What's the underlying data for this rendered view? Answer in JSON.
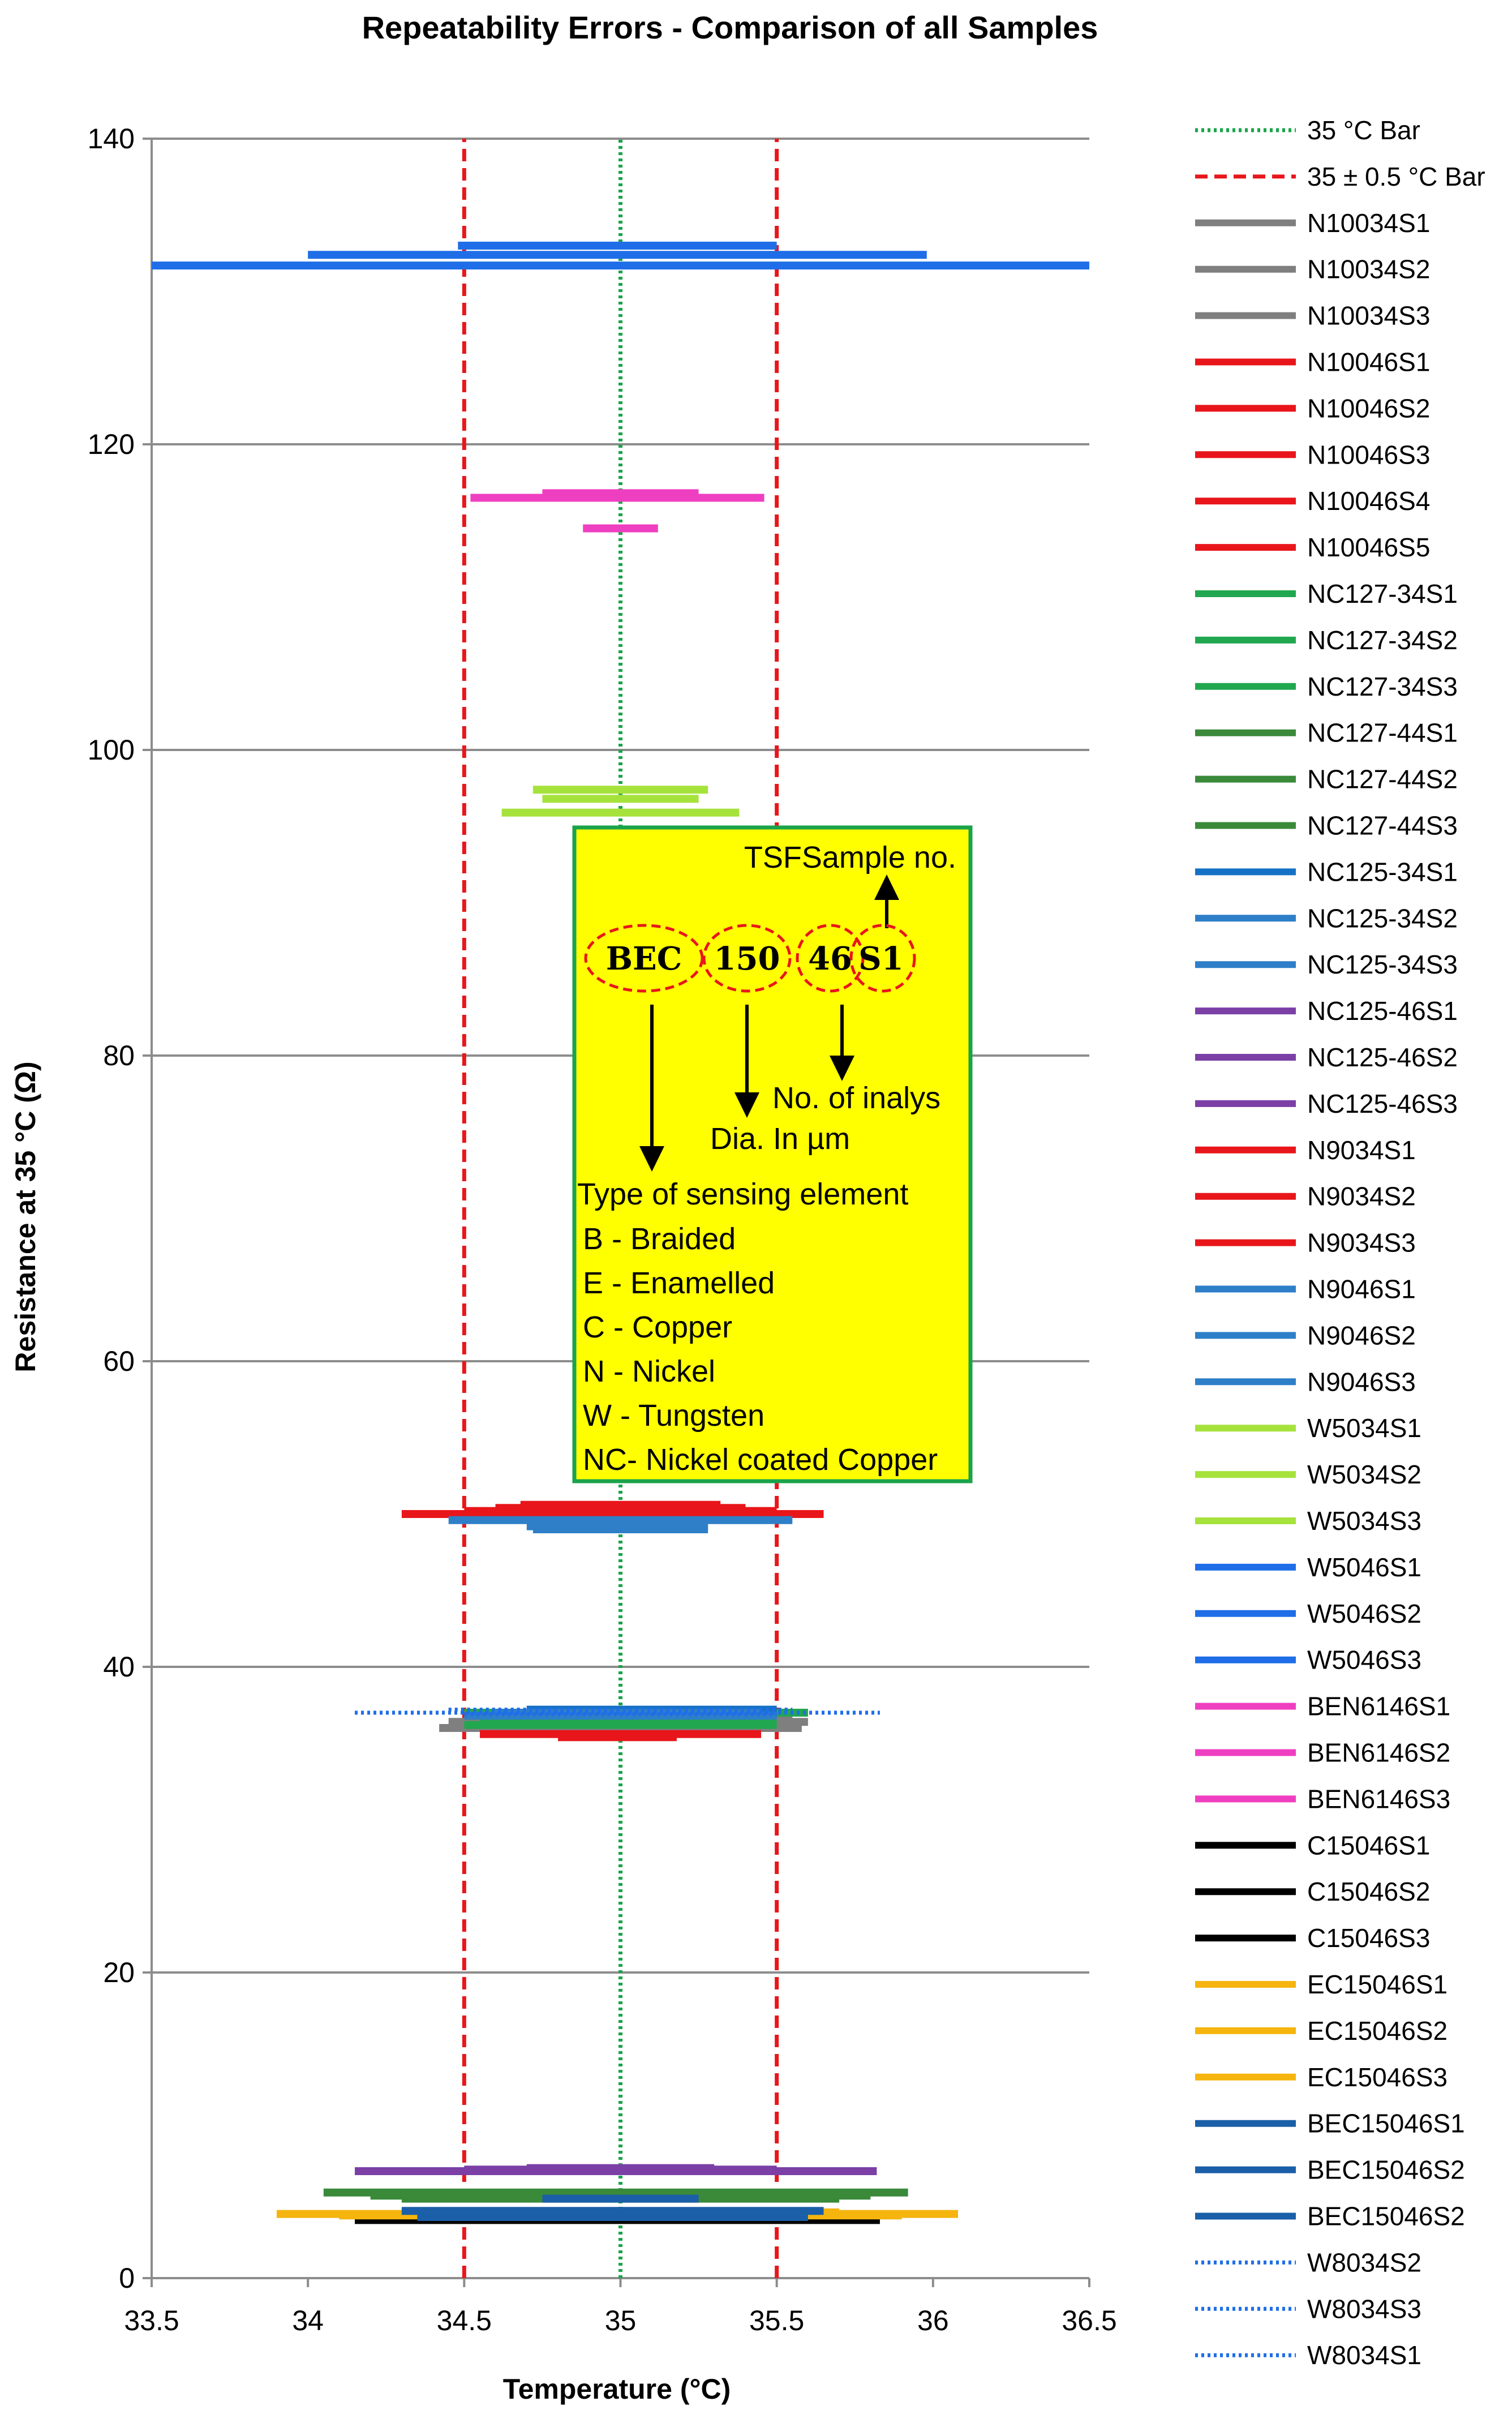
{
  "chart_data": {
    "type": "scatter",
    "title": "Repeatability Errors - Comparison of all Samples",
    "xlabel": "Temperature (°C)",
    "ylabel": "Resistance at 35 °C (Ω)",
    "xlim": [
      33.5,
      36.5
    ],
    "ylim": [
      0,
      140
    ],
    "x_ticks": [
      "33.5",
      "34",
      "34.5",
      "35",
      "35.5",
      "36",
      "36.5"
    ],
    "y_ticks": [
      "0",
      "20",
      "40",
      "60",
      "80",
      "100",
      "120",
      "140"
    ],
    "grid": "horizontal",
    "legend_position": "right",
    "series": [
      {
        "name": "35 °C  Bar",
        "style": "dotted",
        "color": "#1aa34a",
        "x": [
          35,
          35
        ],
        "y": [
          0,
          140
        ]
      },
      {
        "name": "35 ± 0.5 °C Bar",
        "style": "dashed",
        "color": "#e8161b",
        "x": [
          34.5,
          34.5
        ],
        "y": [
          0,
          140
        ]
      },
      {
        "name": "",
        "style": "dashed",
        "color": "#e8161b",
        "x": [
          35.5,
          35.5
        ],
        "y": [
          0,
          140
        ]
      },
      {
        "name": "N10034S1",
        "color": "#7f7f7f",
        "x": [
          34.5,
          35.55
        ],
        "y": [
          36.8,
          36.8
        ]
      },
      {
        "name": "N10034S2",
        "color": "#7f7f7f",
        "x": [
          34.45,
          35.6
        ],
        "y": [
          36.4,
          36.4
        ]
      },
      {
        "name": "N10034S3",
        "color": "#7f7f7f",
        "x": [
          34.42,
          35.58
        ],
        "y": [
          36.0,
          36.0
        ]
      },
      {
        "name": "N10046S1",
        "color": "#e8161b",
        "x": [
          34.68,
          35.32
        ],
        "y": [
          50.6,
          50.6
        ]
      },
      {
        "name": "N10046S2",
        "color": "#e8161b",
        "x": [
          34.35,
          35.65
        ],
        "y": [
          50.0,
          50.0
        ]
      },
      {
        "name": "N10046S3",
        "color": "#e8161b",
        "x": [
          34.6,
          35.4
        ],
        "y": [
          50.3,
          50.3
        ]
      },
      {
        "name": "N10046S4",
        "color": "#e8161b",
        "x": [
          34.55,
          35.45
        ],
        "y": [
          35.6,
          35.6
        ]
      },
      {
        "name": "N10046S5",
        "color": "#e8161b",
        "x": [
          34.8,
          35.18
        ],
        "y": [
          35.4,
          35.4
        ]
      },
      {
        "name": "NC127-34S1",
        "color": "#21a74f",
        "x": [
          34.5,
          35.6
        ],
        "y": [
          37.0,
          37.0
        ]
      },
      {
        "name": "NC127-34S2",
        "color": "#21a74f",
        "x": [
          34.55,
          35.5
        ],
        "y": [
          36.6,
          36.6
        ]
      },
      {
        "name": "NC127-34S3",
        "color": "#21a74f",
        "x": [
          34.5,
          35.5
        ],
        "y": [
          36.2,
          36.2
        ]
      },
      {
        "name": "NC127-44S1",
        "color": "#3a8a3a",
        "x": [
          34.05,
          35.92
        ],
        "y": [
          5.6,
          5.6
        ]
      },
      {
        "name": "NC127-44S2",
        "color": "#3a8a3a",
        "x": [
          34.2,
          35.8
        ],
        "y": [
          5.4,
          5.4
        ]
      },
      {
        "name": "NC127-44S3",
        "color": "#3a8a3a",
        "x": [
          34.3,
          35.7
        ],
        "y": [
          5.2,
          5.2
        ]
      },
      {
        "name": "NC125-34S1",
        "color": "#1472c4",
        "x": [
          34.7,
          35.5
        ],
        "y": [
          37.2,
          37.2
        ]
      },
      {
        "name": "NC125-34S2",
        "color": "#2e7fc8",
        "x": [
          34.6,
          35.45
        ],
        "y": [
          37.0,
          37.0
        ]
      },
      {
        "name": "NC125-34S3",
        "color": "#2e7fc8",
        "x": [
          34.5,
          35.5
        ],
        "y": [
          36.8,
          36.8
        ]
      },
      {
        "name": "NC125-46S1",
        "color": "#7b3fa6",
        "x": [
          34.15,
          35.82
        ],
        "y": [
          7.0,
          7.0
        ]
      },
      {
        "name": "NC125-46S2",
        "color": "#7b3fa6",
        "x": [
          34.7,
          35.3
        ],
        "y": [
          7.2,
          7.2
        ]
      },
      {
        "name": "NC125-46S3",
        "color": "#7b3fa6",
        "x": [
          34.5,
          35.5
        ],
        "y": [
          7.1,
          7.1
        ]
      },
      {
        "name": "N9034S1",
        "color": "#e8161b",
        "x": [
          34.3,
          35.55
        ],
        "y": [
          50.0,
          50.0
        ]
      },
      {
        "name": "N9034S2",
        "color": "#e8161b",
        "x": [
          34.5,
          35.5
        ],
        "y": [
          50.2,
          50.2
        ]
      },
      {
        "name": "N9034S3",
        "color": "#e8161b",
        "x": [
          34.6,
          35.4
        ],
        "y": [
          50.4,
          50.4
        ]
      },
      {
        "name": "N9046S1",
        "color": "#2e7fc8",
        "x": [
          34.72,
          35.28
        ],
        "y": [
          49.0,
          49.0
        ]
      },
      {
        "name": "N9046S2",
        "color": "#2e7fc8",
        "x": [
          34.45,
          35.55
        ],
        "y": [
          49.6,
          49.6
        ]
      },
      {
        "name": "N9046S3",
        "color": "#2e7fc8",
        "x": [
          34.7,
          35.28
        ],
        "y": [
          49.2,
          49.2
        ]
      },
      {
        "name": "W5034S1",
        "color": "#a6e23c",
        "x": [
          34.72,
          35.28
        ],
        "y": [
          97.4,
          97.4
        ]
      },
      {
        "name": "W5034S2",
        "color": "#a6e23c",
        "x": [
          34.75,
          35.25
        ],
        "y": [
          96.8,
          96.8
        ]
      },
      {
        "name": "W5034S3",
        "color": "#a6e23c",
        "x": [
          34.62,
          35.38
        ],
        "y": [
          95.9,
          95.9
        ]
      },
      {
        "name": "W5046S1",
        "color": "#1f6ee8",
        "x": [
          33.5,
          36.5
        ],
        "y": [
          131.7,
          131.7
        ]
      },
      {
        "name": "W5046S2",
        "color": "#1f6ee8",
        "x": [
          34.0,
          35.98
        ],
        "y": [
          132.4,
          132.4
        ]
      },
      {
        "name": "W5046S3",
        "color": "#1f6ee8",
        "x": [
          34.48,
          35.5
        ],
        "y": [
          133.0,
          133.0
        ]
      },
      {
        "name": "BEN6146S1",
        "color": "#ef3fc1",
        "x": [
          34.52,
          35.46
        ],
        "y": [
          116.5,
          116.5
        ]
      },
      {
        "name": "BEN6146S2",
        "color": "#ef3fc1",
        "x": [
          34.75,
          35.25
        ],
        "y": [
          116.8,
          116.8
        ]
      },
      {
        "name": "BEN6146S3",
        "color": "#ef3fc1",
        "x": [
          34.88,
          35.12
        ],
        "y": [
          114.5,
          114.5
        ]
      },
      {
        "name": "C15046S1",
        "color": "#000000",
        "x": [
          34.15,
          35.83
        ],
        "y": [
          3.8,
          3.8
        ]
      },
      {
        "name": "C15046S2",
        "color": "#000000",
        "x": [
          34.32,
          35.65
        ],
        "y": [
          4.0,
          4.0
        ]
      },
      {
        "name": "C15046S3",
        "color": "#000000",
        "x": [
          34.4,
          35.6
        ],
        "y": [
          3.9,
          3.9
        ]
      },
      {
        "name": "EC15046S1",
        "color": "#f5b50e",
        "x": [
          33.9,
          36.08
        ],
        "y": [
          4.2,
          4.2
        ]
      },
      {
        "name": "EC15046S2",
        "color": "#f5b50e",
        "x": [
          34.1,
          35.9
        ],
        "y": [
          4.1,
          4.1
        ]
      },
      {
        "name": "EC15046S3",
        "color": "#f5b50e",
        "x": [
          34.3,
          35.7
        ],
        "y": [
          4.3,
          4.3
        ]
      },
      {
        "name": "BEC15046S1",
        "color": "#1a5fa8",
        "x": [
          34.3,
          35.65
        ],
        "y": [
          4.4,
          4.4
        ]
      },
      {
        "name": "BEC15046S2",
        "color": "#1a5fa8",
        "x": [
          34.75,
          35.25
        ],
        "y": [
          5.2,
          5.2
        ]
      },
      {
        "name": "BEC15046S2",
        "color": "#1a5fa8",
        "x": [
          34.35,
          35.6
        ],
        "y": [
          4.0,
          4.0
        ]
      },
      {
        "name": "W8034S2",
        "style": "dotted",
        "color": "#1f6ee8",
        "x": [
          34.15,
          35.83
        ],
        "y": [
          37.0,
          37.0
        ]
      },
      {
        "name": "W8034S3",
        "style": "dotted",
        "color": "#1f6ee8",
        "x": [
          34.45,
          35.55
        ],
        "y": [
          37.2,
          37.2
        ]
      },
      {
        "name": "W8034S1",
        "style": "dotted",
        "color": "#1f6ee8",
        "x": [
          34.5,
          35.5
        ],
        "y": [
          36.9,
          36.9
        ]
      }
    ],
    "annotation": {
      "background": "#ffff00",
      "border": "#1aa34a",
      "tsf_label": "TSFSample no.",
      "code_parts": [
        "BEC",
        "150",
        "46",
        "S1"
      ],
      "inalys_label": "No. of inalys",
      "dia_label": "Dia. In µm",
      "type_label": "Type of sensing element",
      "legend_lines": [
        "B - Braided",
        "E - Enamelled",
        "C - Copper",
        "N - Nickel",
        "W - Tungsten",
        "NC- Nickel coated Copper"
      ]
    }
  }
}
